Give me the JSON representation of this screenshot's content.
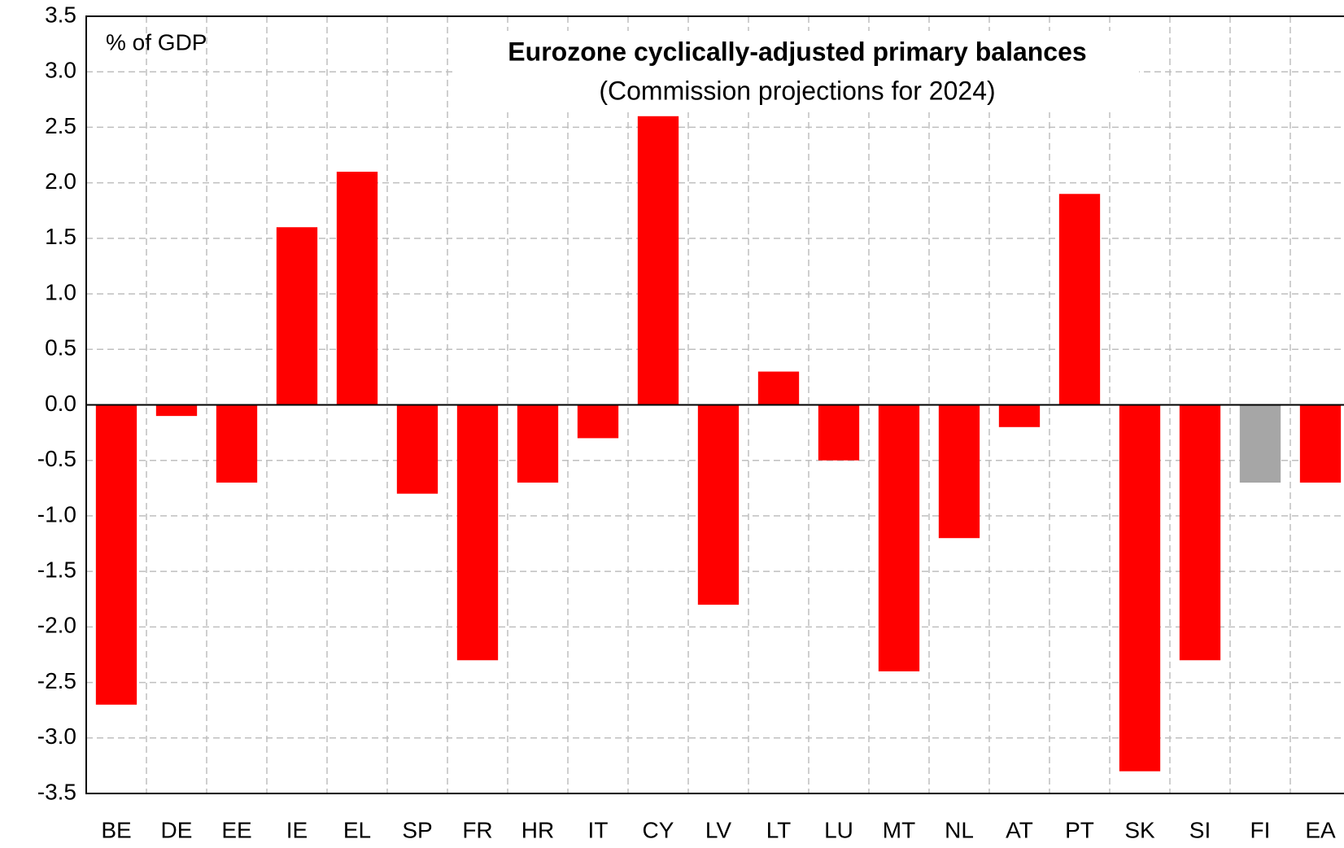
{
  "chart_data": {
    "type": "bar",
    "title": "Eurozone cyclically-adjusted primary balances",
    "subtitle": "(Commission projections for 2024)",
    "y_axis_label": "% of GDP",
    "categories": [
      "BE",
      "DE",
      "EE",
      "IE",
      "EL",
      "SP",
      "FR",
      "HR",
      "IT",
      "CY",
      "LV",
      "LT",
      "LU",
      "MT",
      "NL",
      "AT",
      "PT",
      "SK",
      "SI",
      "FI",
      "EA"
    ],
    "values": [
      -2.7,
      -0.1,
      -0.7,
      1.6,
      2.1,
      -0.8,
      -2.3,
      -0.7,
      -0.3,
      2.6,
      -1.8,
      0.3,
      -0.5,
      -2.4,
      -1.2,
      -0.2,
      1.9,
      -3.3,
      -2.3,
      -0.7,
      -0.7
    ],
    "colors": [
      "#ff0000",
      "#ff0000",
      "#ff0000",
      "#ff0000",
      "#ff0000",
      "#ff0000",
      "#ff0000",
      "#ff0000",
      "#ff0000",
      "#ff0000",
      "#ff0000",
      "#ff0000",
      "#ff0000",
      "#ff0000",
      "#ff0000",
      "#ff0000",
      "#ff0000",
      "#ff0000",
      "#ff0000",
      "#a6a6a6",
      "#ff0000"
    ],
    "ylim": [
      -3.5,
      3.5
    ],
    "yticks": [
      3.5,
      {
        "value": 3,
        "label": "3.0"
      },
      2.5,
      {
        "value": 2,
        "label": "2.0"
      },
      1.5,
      {
        "value": 1,
        "label": "1.0"
      },
      0.5,
      {
        "value": 0,
        "label": "0.0"
      },
      -0.5,
      {
        "value": -1,
        "label": "-1.0"
      },
      -1.5,
      {
        "value": -2,
        "label": "-2.0"
      },
      -2.5,
      {
        "value": -3,
        "label": "-3.0"
      },
      -3.5
    ],
    "grid": true
  }
}
